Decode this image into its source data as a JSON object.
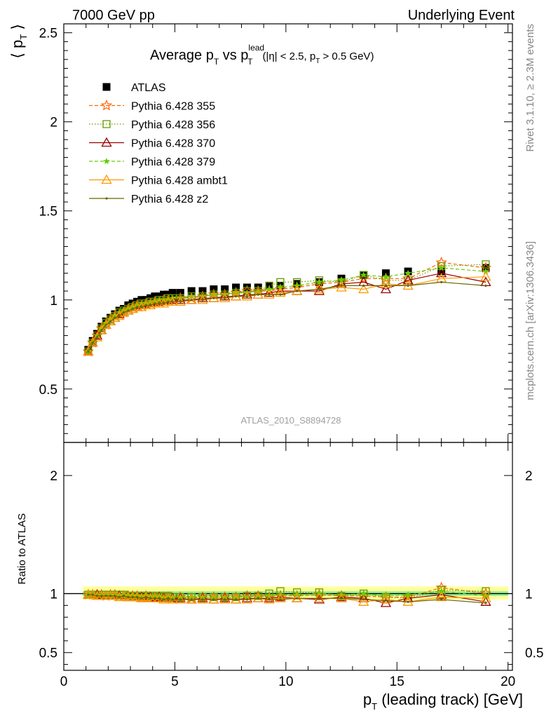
{
  "header": {
    "left": "7000 GeV pp",
    "right": "Underlying Event"
  },
  "main_title": {
    "prefix": "Average p",
    "sub1": "T",
    "mid": " vs p",
    "sup": "lead",
    "sub2": "T",
    "cut_a": "(|η| < 2.5, p",
    "cut_sub": "T",
    "cut_b": " > 0.5 GeV)"
  },
  "ylabel_top": {
    "l": "⟨ p",
    "sub": "T",
    "r": " ⟩"
  },
  "ylabel_bottom": "Ratio to ATLAS",
  "xlabel": {
    "p": "p",
    "sub": "T",
    "rest": " (leading track) [GeV]"
  },
  "side_text": {
    "rivet": "Rivet 3.1.10, ≥ 2.3M events",
    "mcplots": "mcplots.cern.ch [arXiv:1306.3436]"
  },
  "analysis_id": "ATLAS_2010_S8894728",
  "ticks": {
    "x": [
      {
        "v": 0,
        "label": "0"
      },
      {
        "v": 5,
        "label": "5"
      },
      {
        "v": 10,
        "label": "10"
      },
      {
        "v": 15,
        "label": "15"
      },
      {
        "v": 20,
        "label": "20"
      }
    ],
    "y_top": [
      {
        "v": 0.5,
        "label": "0.5"
      },
      {
        "v": 1,
        "label": "1"
      },
      {
        "v": 1.5,
        "label": "1.5"
      },
      {
        "v": 2,
        "label": "2"
      },
      {
        "v": 2.5,
        "label": "2.5"
      }
    ],
    "y_bottom": [
      {
        "v": 0.5,
        "label": "0.5"
      },
      {
        "v": 1,
        "label": "1"
      },
      {
        "v": 2,
        "label": "2"
      }
    ]
  },
  "chart_data": {
    "type": "scatter",
    "xlim": [
      0,
      20.2
    ],
    "ylim_top": [
      0.2,
      2.55
    ],
    "ylim_bottom": [
      0.35,
      2.28
    ],
    "x": [
      1.1,
      1.3,
      1.5,
      1.7,
      1.9,
      2.1,
      2.3,
      2.5,
      2.7,
      2.9,
      3.1,
      3.3,
      3.5,
      3.7,
      3.9,
      4.1,
      4.3,
      4.5,
      4.7,
      4.9,
      5.25,
      5.75,
      6.25,
      6.75,
      7.25,
      7.75,
      8.25,
      8.75,
      9.25,
      9.75,
      10.5,
      11.5,
      12.5,
      13.5,
      14.5,
      15.5,
      17,
      19
    ],
    "series": [
      {
        "name": "ATLAS",
        "color": "#000000",
        "marker": "square",
        "line": "none",
        "values": [
          0.72,
          0.77,
          0.81,
          0.85,
          0.88,
          0.9,
          0.92,
          0.94,
          0.95,
          0.97,
          0.98,
          0.99,
          1.0,
          1.0,
          1.01,
          1.02,
          1.02,
          1.03,
          1.03,
          1.04,
          1.04,
          1.05,
          1.05,
          1.06,
          1.06,
          1.07,
          1.07,
          1.07,
          1.08,
          1.08,
          1.09,
          1.1,
          1.12,
          1.14,
          1.15,
          1.16,
          1.16,
          1.18
        ],
        "ratio_band_green": [
          0.98,
          1.02
        ],
        "ratio_band_yellow": [
          0.95,
          1.06
        ]
      },
      {
        "name": "Pythia 6.428 355",
        "color": "#ff6600",
        "marker": "star-open",
        "line": "dashed",
        "values": [
          0.71,
          0.76,
          0.8,
          0.84,
          0.86,
          0.89,
          0.91,
          0.92,
          0.93,
          0.95,
          0.96,
          0.97,
          0.97,
          0.98,
          0.98,
          0.99,
          0.99,
          1.0,
          1.0,
          1.0,
          1.01,
          1.01,
          1.02,
          1.03,
          1.03,
          1.04,
          1.05,
          1.05,
          1.05,
          1.06,
          1.07,
          1.09,
          1.1,
          1.12,
          1.12,
          1.12,
          1.21,
          1.18
        ],
        "ratio": [
          0.99,
          0.99,
          0.99,
          0.99,
          0.98,
          0.99,
          0.99,
          0.98,
          0.98,
          0.98,
          0.98,
          0.98,
          0.97,
          0.98,
          0.97,
          0.97,
          0.97,
          0.97,
          0.97,
          0.96,
          0.97,
          0.96,
          0.97,
          0.97,
          0.97,
          0.97,
          0.98,
          0.98,
          0.97,
          0.98,
          0.98,
          0.99,
          0.98,
          0.98,
          0.97,
          0.97,
          1.05,
          1.0
        ]
      },
      {
        "name": "Pythia 6.428 356",
        "color": "#669900",
        "marker": "square-open",
        "line": "dotted",
        "values": [
          0.71,
          0.76,
          0.8,
          0.84,
          0.87,
          0.89,
          0.91,
          0.93,
          0.94,
          0.95,
          0.96,
          0.97,
          0.98,
          0.98,
          0.99,
          0.99,
          1.0,
          1.0,
          1.01,
          1.01,
          1.01,
          1.02,
          1.02,
          1.03,
          1.03,
          1.04,
          1.05,
          1.05,
          1.08,
          1.1,
          1.1,
          1.11,
          1.1,
          1.14,
          1.11,
          1.11,
          1.19,
          1.2
        ],
        "ratio": [
          0.99,
          0.99,
          0.99,
          0.99,
          0.99,
          0.99,
          0.99,
          0.99,
          0.99,
          0.98,
          0.98,
          0.98,
          0.98,
          0.98,
          0.98,
          0.97,
          0.98,
          0.97,
          0.98,
          0.97,
          0.97,
          0.97,
          0.97,
          0.97,
          0.97,
          0.97,
          0.98,
          0.98,
          1.0,
          1.02,
          1.01,
          1.01,
          0.98,
          1.0,
          0.97,
          0.96,
          1.03,
          1.02
        ]
      },
      {
        "name": "Pythia 6.428 370",
        "color": "#990000",
        "marker": "triangle-open",
        "line": "solid",
        "values": [
          0.71,
          0.76,
          0.8,
          0.83,
          0.86,
          0.88,
          0.9,
          0.92,
          0.93,
          0.94,
          0.95,
          0.96,
          0.97,
          0.97,
          0.98,
          0.98,
          0.99,
          0.99,
          0.99,
          1.0,
          1.0,
          1.0,
          1.01,
          1.01,
          1.02,
          1.02,
          1.03,
          1.03,
          1.04,
          1.05,
          1.05,
          1.05,
          1.09,
          1.1,
          1.06,
          1.11,
          1.15,
          1.1
        ],
        "ratio": [
          0.99,
          0.99,
          0.99,
          0.98,
          0.98,
          0.98,
          0.98,
          0.98,
          0.98,
          0.97,
          0.97,
          0.97,
          0.97,
          0.97,
          0.97,
          0.96,
          0.97,
          0.96,
          0.96,
          0.96,
          0.96,
          0.95,
          0.96,
          0.95,
          0.96,
          0.95,
          0.96,
          0.96,
          0.96,
          0.97,
          0.96,
          0.95,
          0.97,
          0.96,
          0.92,
          0.96,
          0.99,
          0.93
        ]
      },
      {
        "name": "Pythia 6.428 379",
        "color": "#66cc00",
        "marker": "star",
        "line": "dashed",
        "values": [
          0.71,
          0.76,
          0.8,
          0.84,
          0.87,
          0.89,
          0.91,
          0.93,
          0.94,
          0.95,
          0.96,
          0.97,
          0.98,
          0.98,
          0.99,
          0.99,
          1.0,
          1.0,
          1.0,
          1.01,
          1.01,
          1.02,
          1.02,
          1.03,
          1.03,
          1.04,
          1.04,
          1.05,
          1.06,
          1.07,
          1.08,
          1.1,
          1.11,
          1.14,
          1.13,
          1.15,
          1.18,
          1.16
        ],
        "ratio": [
          0.99,
          0.99,
          0.99,
          0.99,
          0.99,
          0.99,
          0.99,
          0.99,
          0.99,
          0.98,
          0.98,
          0.98,
          0.98,
          0.98,
          0.98,
          0.97,
          0.98,
          0.97,
          0.97,
          0.97,
          0.97,
          0.97,
          0.97,
          0.97,
          0.97,
          0.97,
          0.97,
          0.98,
          0.98,
          0.99,
          0.99,
          1.0,
          0.99,
          1.0,
          0.98,
          0.99,
          1.02,
          0.98
        ]
      },
      {
        "name": "Pythia 6.428 ambt1",
        "color": "#ff9900",
        "marker": "triangle-open",
        "line": "solid",
        "values": [
          0.71,
          0.76,
          0.79,
          0.83,
          0.86,
          0.88,
          0.9,
          0.91,
          0.93,
          0.94,
          0.95,
          0.96,
          0.96,
          0.97,
          0.97,
          0.98,
          0.98,
          0.98,
          0.99,
          0.99,
          0.99,
          1.0,
          1.0,
          1.01,
          1.01,
          1.02,
          1.02,
          1.03,
          1.03,
          1.04,
          1.05,
          1.06,
          1.07,
          1.06,
          1.09,
          1.08,
          1.12,
          1.13
        ],
        "ratio": [
          0.99,
          0.99,
          0.98,
          0.98,
          0.98,
          0.98,
          0.98,
          0.97,
          0.98,
          0.97,
          0.97,
          0.97,
          0.96,
          0.97,
          0.96,
          0.96,
          0.96,
          0.95,
          0.96,
          0.95,
          0.95,
          0.95,
          0.95,
          0.95,
          0.95,
          0.95,
          0.95,
          0.96,
          0.95,
          0.96,
          0.96,
          0.96,
          0.96,
          0.93,
          0.95,
          0.93,
          0.97,
          0.96
        ]
      },
      {
        "name": "Pythia 6.428 z2",
        "color": "#666600",
        "marker": "dot",
        "line": "solid",
        "values": [
          0.71,
          0.76,
          0.79,
          0.83,
          0.86,
          0.88,
          0.9,
          0.91,
          0.93,
          0.94,
          0.95,
          0.96,
          0.96,
          0.97,
          0.97,
          0.98,
          0.98,
          0.98,
          0.99,
          0.99,
          0.99,
          1.0,
          1.0,
          1.01,
          1.01,
          1.02,
          1.02,
          1.03,
          1.03,
          1.03,
          1.05,
          1.06,
          1.08,
          1.08,
          1.08,
          1.08,
          1.1,
          1.08
        ],
        "ratio": [
          0.99,
          0.99,
          0.98,
          0.98,
          0.98,
          0.98,
          0.98,
          0.97,
          0.98,
          0.97,
          0.97,
          0.97,
          0.96,
          0.97,
          0.96,
          0.96,
          0.96,
          0.95,
          0.96,
          0.95,
          0.95,
          0.95,
          0.95,
          0.95,
          0.95,
          0.95,
          0.95,
          0.96,
          0.95,
          0.95,
          0.96,
          0.96,
          0.96,
          0.95,
          0.94,
          0.93,
          0.95,
          0.92
        ]
      }
    ]
  }
}
